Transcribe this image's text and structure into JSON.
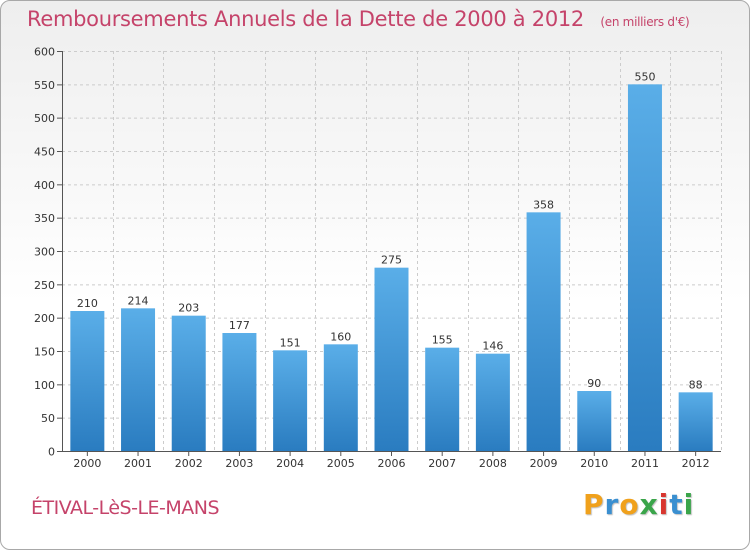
{
  "chart_data": {
    "type": "bar",
    "title": "Remboursements Annuels de la Dette de 2000 à 2012",
    "unit": "(en milliers d'€)",
    "categories": [
      "2000",
      "2001",
      "2002",
      "2003",
      "2004",
      "2005",
      "2006",
      "2007",
      "2008",
      "2009",
      "2010",
      "2011",
      "2012"
    ],
    "values": [
      210,
      214,
      203,
      177,
      151,
      160,
      275,
      155,
      146,
      358,
      90,
      550,
      88
    ],
    "ylim": [
      0,
      600
    ],
    "yticks": [
      0,
      50,
      100,
      150,
      200,
      250,
      300,
      350,
      400,
      450,
      500,
      550,
      600
    ],
    "grid": true,
    "bar_color_top": "#5aaee8",
    "bar_color_bottom": "#2a7cc0"
  },
  "commune": "ÉTIVAL-LèS-LE-MANS",
  "logo": {
    "letters": [
      "P",
      "r",
      "o",
      "x",
      "i",
      "t",
      "i"
    ],
    "colors": [
      "#f0a11c",
      "#3a8fd0",
      "#f0a11c",
      "#3aa54a",
      "#d8362f",
      "#3a8fd0",
      "#3aa54a"
    ]
  }
}
